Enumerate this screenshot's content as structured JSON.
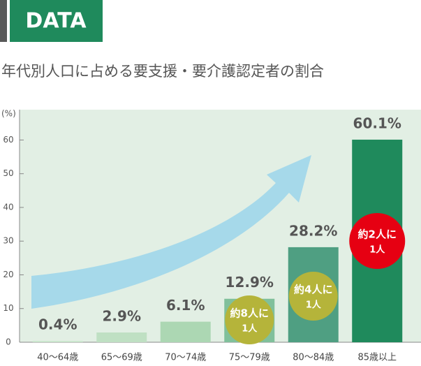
{
  "header": "DATA",
  "chart_data": {
    "type": "bar",
    "title": "年代別人口に占める要支援・要介護認定者の割合",
    "y_label": "(%)",
    "categories": [
      "40～64歳",
      "65～69歳",
      "70～74歳",
      "75～79歳",
      "80～84歳",
      "85歳以上"
    ],
    "values": [
      0.4,
      2.9,
      6.1,
      12.9,
      28.2,
      60.1
    ],
    "value_labels": [
      "0.4%",
      "2.9%",
      "6.1%",
      "12.9%",
      "28.2%",
      "60.1%"
    ],
    "colors": [
      "#c9e5cc",
      "#bfe0c3",
      "#acd7b3",
      "#80c09b",
      "#4f9f82",
      "#1f8a5c"
    ],
    "ylim": [
      0,
      69
    ],
    "yticks": [
      0,
      10,
      20,
      30,
      40,
      50,
      60
    ],
    "annotations": [
      [
        "約8人に",
        "1人"
      ],
      [
        "約4人に",
        "1人"
      ],
      [
        "約2人に",
        "1人"
      ]
    ]
  }
}
